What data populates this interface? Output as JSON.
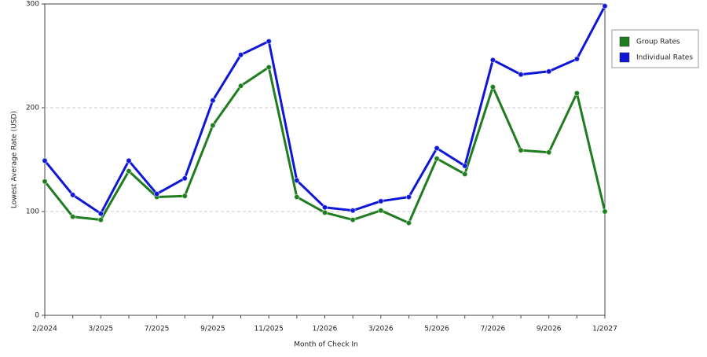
{
  "chart_data": {
    "type": "line",
    "x_label": "Month of Check In",
    "y_label": "Lowest Average Rate (USD)",
    "categories": [
      "2/2024",
      null,
      "3/2025",
      null,
      "7/2025",
      null,
      "9/2025",
      null,
      "11/2025",
      null,
      "1/2026",
      null,
      "3/2026",
      null,
      "5/2026",
      null,
      "7/2026",
      null,
      "9/2026",
      null,
      "1/2027"
    ],
    "series": [
      {
        "name": "Group Rates",
        "color": "#1e7d1e",
        "values": [
          129,
          95,
          92,
          139,
          114,
          115,
          183,
          221,
          239,
          114,
          99,
          92,
          101,
          89,
          151,
          136,
          220,
          159,
          157,
          214,
          100
        ]
      },
      {
        "name": "Individual Rates",
        "color": "#0f16d6",
        "values": [
          149,
          116,
          98,
          149,
          117,
          132,
          207,
          251,
          264,
          130,
          104,
          101,
          110,
          114,
          161,
          144,
          246,
          232,
          235,
          247,
          298
        ]
      }
    ],
    "ylim": [
      0,
      300
    ],
    "yticks": [
      0,
      100,
      200,
      300
    ],
    "grid": true,
    "legend": "right"
  }
}
